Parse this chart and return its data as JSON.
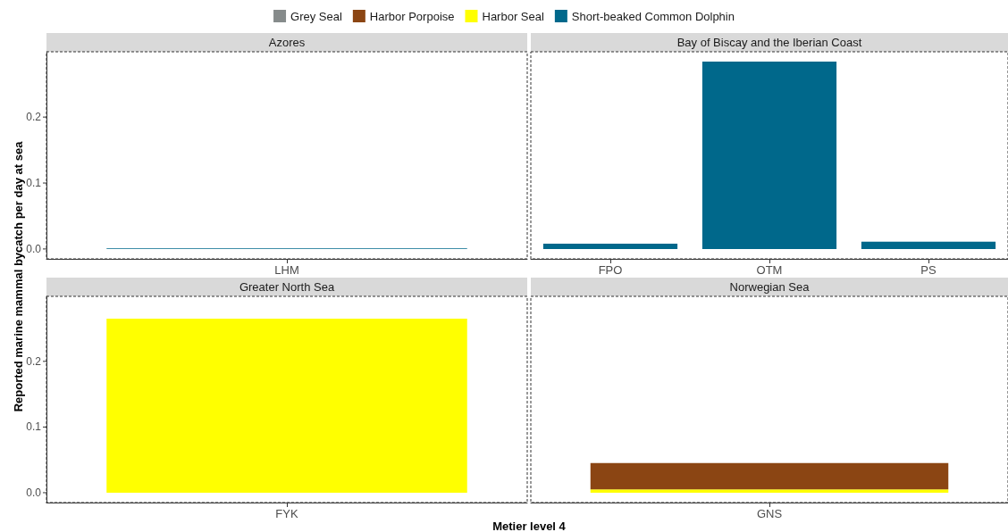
{
  "chart_data": [
    {
      "type": "bar",
      "title": "Azores",
      "ylabel": "Reported marine mammal bycatch per day at sea",
      "categories": [
        "LHM"
      ],
      "stacked": true,
      "legend": "top",
      "ylim": [
        -0.015,
        0.299
      ],
      "yticks": [
        {
          "value": 0,
          "label": "0.0"
        },
        {
          "value": 0.1,
          "label": "0.1"
        },
        {
          "value": 0.2,
          "label": "0.2"
        }
      ],
      "grid": false,
      "series": [
        {
          "name": "Grey Seal",
          "color": "#868b8b",
          "values": [
            null
          ]
        },
        {
          "name": "Harbor Porpoise",
          "color": "#8b4513",
          "values": [
            null
          ]
        },
        {
          "name": "Harbor Seal",
          "color": "#ffff00",
          "values": [
            null
          ]
        },
        {
          "name": "Short-beaked Common Dolphin",
          "color": "#00688b",
          "values": [
            0.001
          ]
        }
      ]
    },
    {
      "type": "bar",
      "title": "Bay of Biscay and the Iberian Coast",
      "categories": [
        "FPO",
        "OTM",
        "PS"
      ],
      "stacked": true,
      "ylim": [
        -0.015,
        0.299
      ],
      "tick_labels": "x",
      "grid": false,
      "series": [
        {
          "color": "#00688b",
          "values": [
            0.008,
            0.284,
            0.011
          ]
        }
      ]
    },
    {
      "type": "bar",
      "title": "Greater North Sea",
      "xlabel": "Metier level 4",
      "categories": [
        "FYK"
      ],
      "stacked": true,
      "ylim": [
        -0.015,
        0.299
      ],
      "yticks": [
        {
          "value": 0,
          "label": "0.0"
        },
        {
          "value": 0.1,
          "label": "0.1"
        },
        {
          "value": 0.2,
          "label": "0.2"
        }
      ],
      "grid": false,
      "series": [
        {
          "color": "#ffff00",
          "values": [
            0.265
          ]
        }
      ]
    },
    {
      "type": "bar",
      "title": "Norwegian Sea",
      "categories": [
        "GNS"
      ],
      "stacked": true,
      "ylim": [
        -0.015,
        0.299
      ],
      "tick_labels": "x",
      "grid": false,
      "series": [
        {
          "color": "#ffff00",
          "values": [
            0.005
          ]
        },
        {
          "color": "#8b4513",
          "values": [
            0.04
          ]
        }
      ]
    }
  ]
}
